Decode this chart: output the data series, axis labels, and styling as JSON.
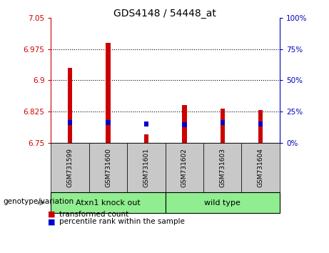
{
  "title": "GDS4148 / 54448_at",
  "samples": [
    "GSM731599",
    "GSM731600",
    "GSM731601",
    "GSM731602",
    "GSM731603",
    "GSM731604"
  ],
  "red_values": [
    6.93,
    6.99,
    6.77,
    6.84,
    6.833,
    6.828
  ],
  "blue_values": [
    6.793,
    6.793,
    6.79,
    6.788,
    6.792,
    6.79
  ],
  "blue_heights": [
    0.012,
    0.012,
    0.012,
    0.012,
    0.012,
    0.012
  ],
  "ymin": 6.75,
  "ymax": 7.05,
  "yticks": [
    6.75,
    6.825,
    6.9,
    6.975,
    7.05
  ],
  "right_yticks": [
    0,
    25,
    50,
    75,
    100
  ],
  "bar_width": 0.12,
  "red_color": "#CC0000",
  "blue_color": "#0000CC",
  "tick_label_color": "#CC0000",
  "right_tick_color": "#0000BB",
  "background_label": "#C8C8C8",
  "legend_red": "transformed count",
  "legend_blue": "percentile rank within the sample",
  "genotype_label": "genotype/variation",
  "group_labels": [
    "Atxn1 knock out",
    "wild type"
  ],
  "group_ranges": [
    [
      0,
      3
    ],
    [
      3,
      6
    ]
  ],
  "group_color": "#90EE90"
}
